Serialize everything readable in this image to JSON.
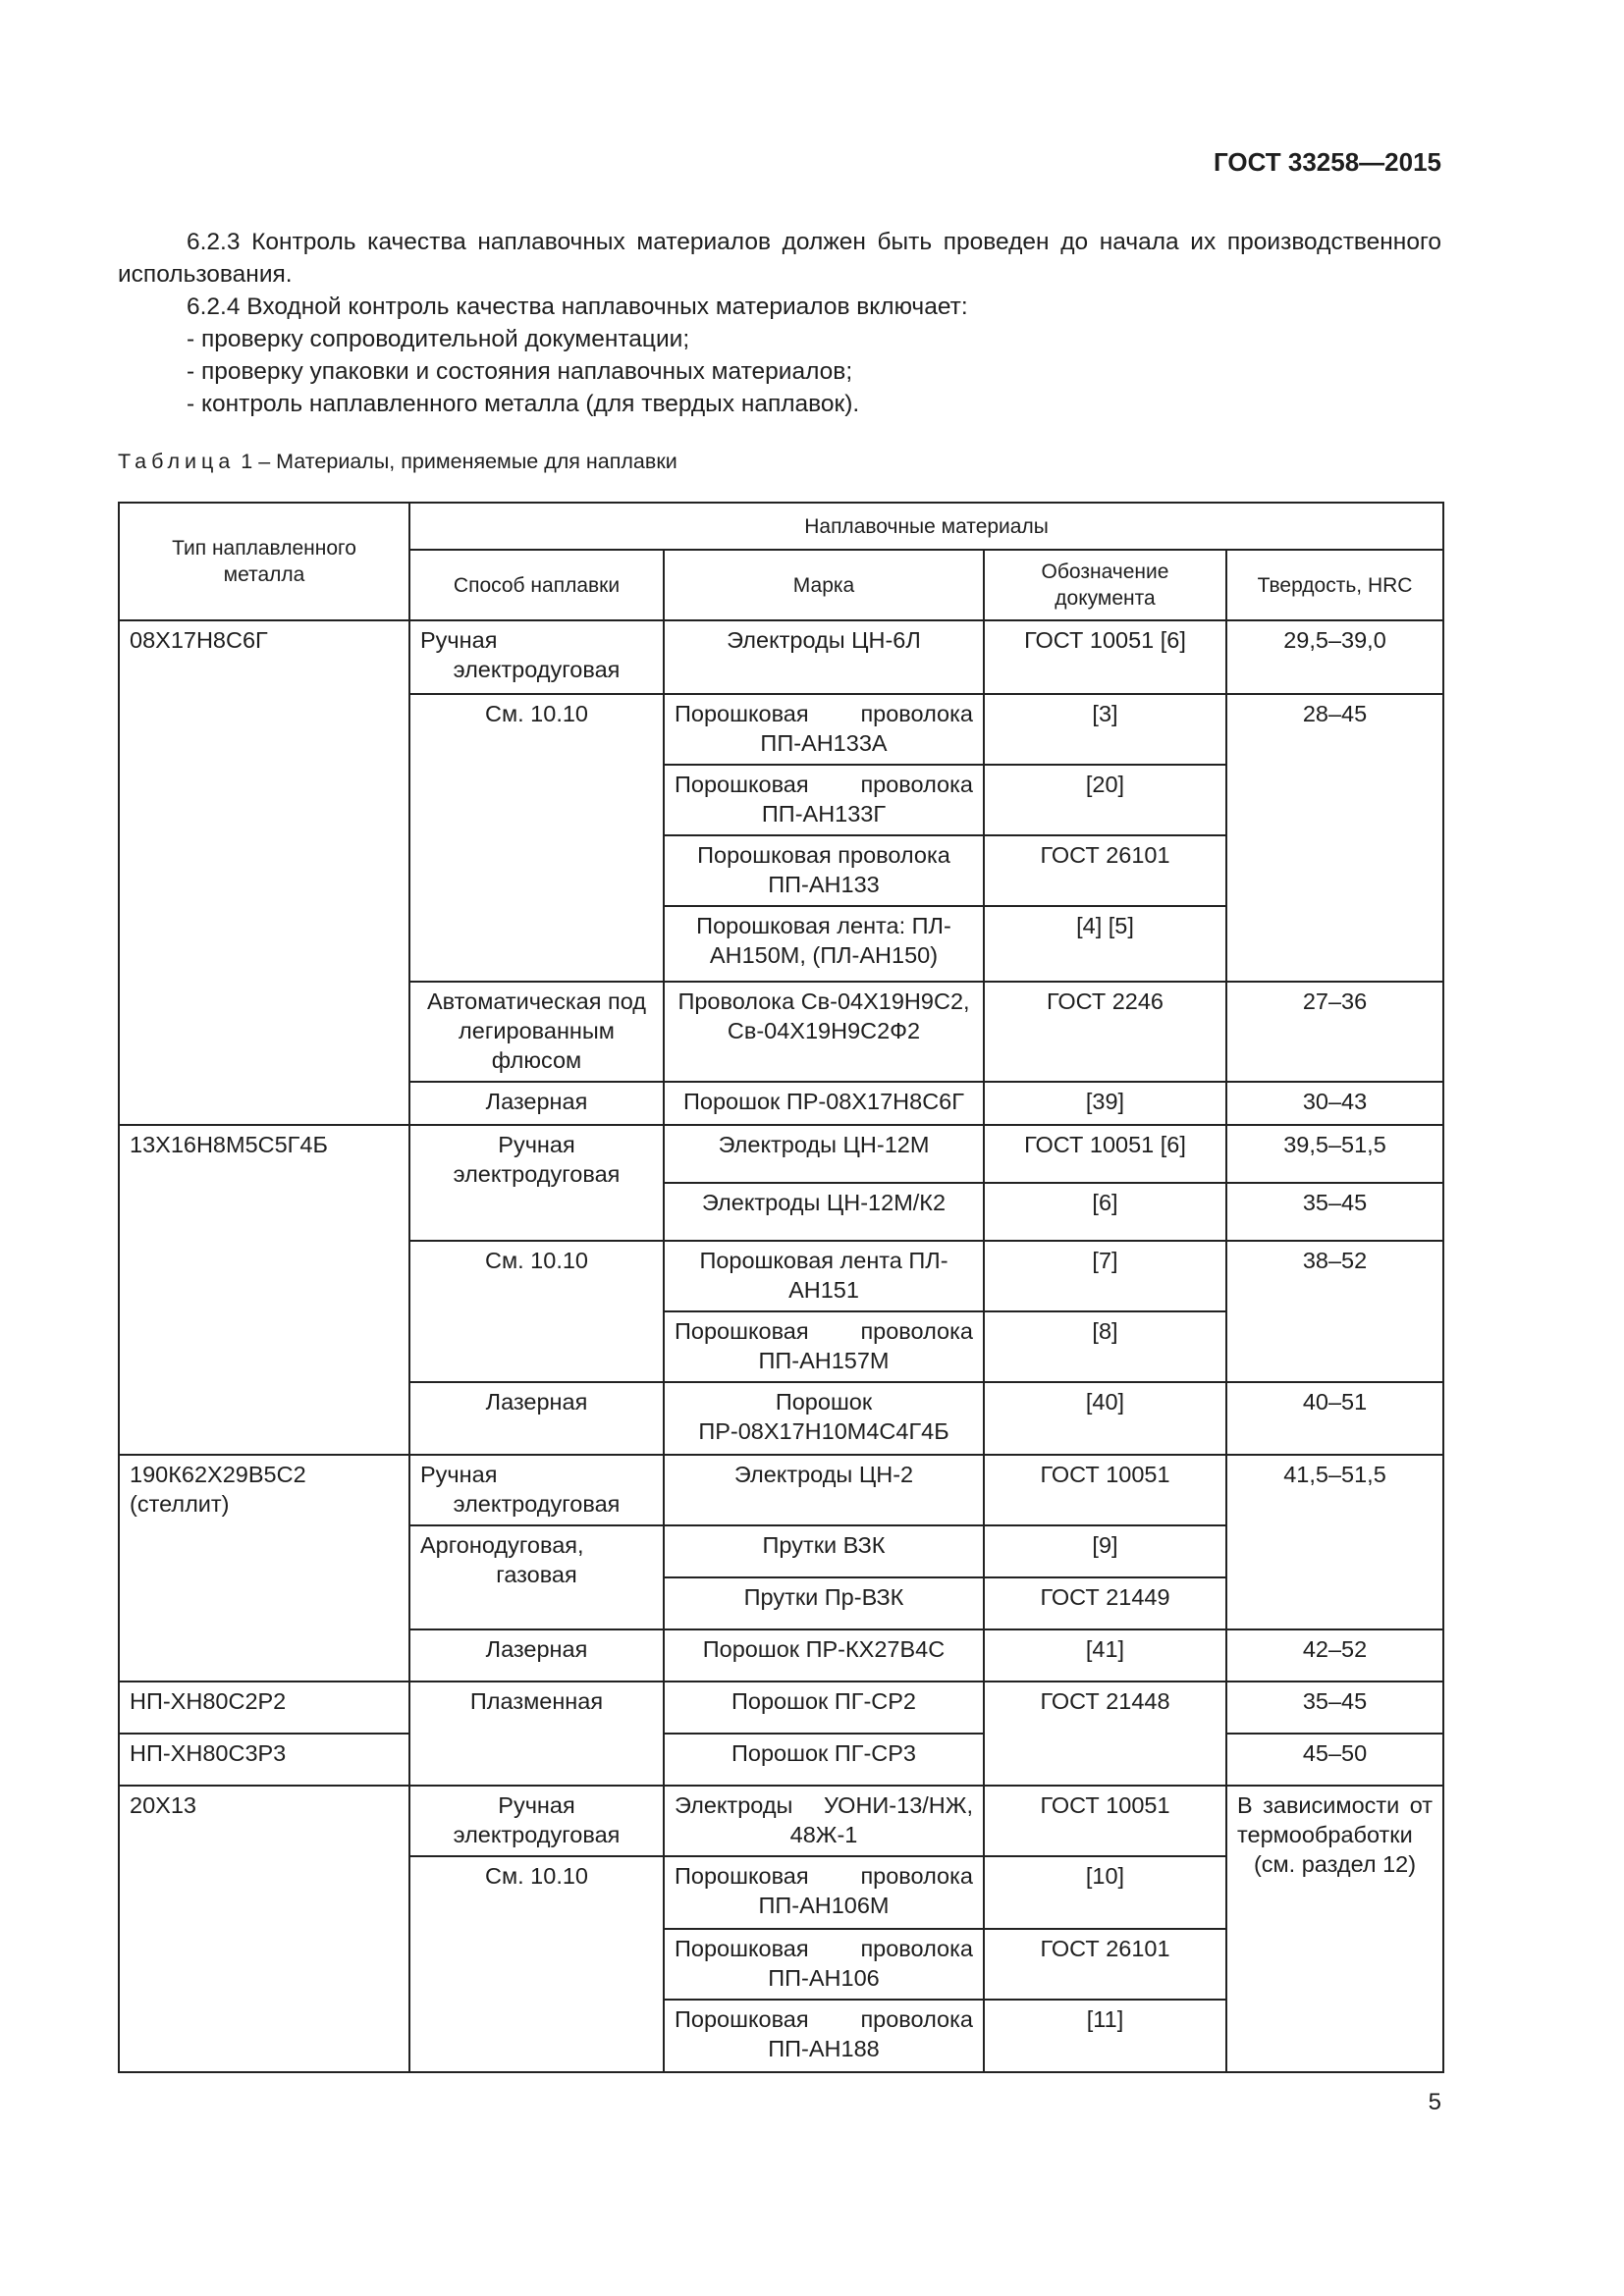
{
  "header": {
    "code": "ГОСТ 33258—2015"
  },
  "paragraphs": [
    "6.2.3 Контроль качества наплавочных материалов должен быть проведен до начала их производственного использования.",
    "6.2.4 Входной контроль качества наплавочных материалов включает:",
    "- проверку сопроводительной документации;",
    "- проверку упаковки и состояния наплавочных материалов;",
    "- контроль наплавленного металла (для твердых наплавок)."
  ],
  "table_caption": {
    "label": "Таблица",
    "text": "1 – Материалы, применяемые для наплавки"
  },
  "table": {
    "header": {
      "type": "Тип наплавленного металла",
      "group": "Наплавочные материалы",
      "columns": [
        "Способ наплавки",
        "Марка",
        "Обозначение документа",
        "Твердость, HRC"
      ]
    },
    "rows": [
      [
        "08Х17Н8С6Г",
        "Ручная электродуговая",
        "Электроды ЦН-6Л",
        "ГОСТ 10051 [6]",
        "29,5–39,0"
      ],
      [
        "См. 10.10",
        "Порошковая проволока ПП-АН133А",
        "[3]",
        "28–45"
      ],
      [
        "Порошковая проволока ПП-АН133Г",
        "[20]"
      ],
      [
        "Порошковая проволока ПП-АН133",
        "ГОСТ 26101"
      ],
      [
        "Порошковая лента: ПЛ-АН150М, (ПЛ-АН150)",
        "[4] [5]"
      ],
      [
        "Автоматическая под легированным флюсом",
        "Проволока Св-04Х19Н9С2, Св-04Х19Н9С2Ф2",
        "ГОСТ 2246",
        "27–36"
      ],
      [
        "Лазерная",
        "Порошок ПР-08Х17Н8С6Г",
        "[39]",
        "30–43"
      ],
      [
        "13Х16Н8М5С5Г4Б",
        "Ручная электродуговая",
        "Электроды ЦН-12М",
        "ГОСТ 10051 [6]",
        "39,5–51,5"
      ],
      [
        "Электроды ЦН-12М/К2",
        "[6]",
        "35–45"
      ],
      [
        "См. 10.10",
        "Порошковая лента ПЛ-АН151",
        "[7]",
        "38–52"
      ],
      [
        "Порошковая проволока ПП-АН157М",
        "[8]"
      ],
      [
        "Лазерная",
        "Порошок ПР-08Х17Н10М4С4Г4Б",
        "[40]",
        "40–51"
      ],
      [
        "190К62Х29В5С2 (стеллит)",
        "Ручная электродуговая",
        "Электроды ЦН-2",
        "ГОСТ 10051",
        "41,5–51,5"
      ],
      [
        "Аргонодуговая, газовая",
        "Прутки ВЗК",
        "[9]"
      ],
      [
        "Прутки Пр-ВЗК",
        "ГОСТ 21449"
      ],
      [
        "Лазерная",
        "Порошок ПР-КХ27В4С",
        "[41]",
        "42–52"
      ],
      [
        "НП-ХН80С2Р2",
        "Плазменная",
        "Порошок ПГ-СР2",
        "ГОСТ 21448",
        "35–45"
      ],
      [
        "НП-ХН80С3Р3",
        "Порошок ПГ-СР3",
        "45–50"
      ],
      [
        "20Х13",
        "Ручная электродуговая",
        "Электроды УОНИ-13/НЖ, 48Ж-1",
        "ГОСТ 10051",
        "В зависимости от термообработки (см. раздел 12)"
      ],
      [
        "См. 10.10",
        "Порошковая проволока ПП-АН106М",
        "[10]"
      ],
      [
        "Порошковая проволока ПП-АН106",
        "ГОСТ 26101"
      ],
      [
        "Порошковая проволока ПП-АН188",
        "[11]"
      ]
    ]
  },
  "page_number": "5"
}
